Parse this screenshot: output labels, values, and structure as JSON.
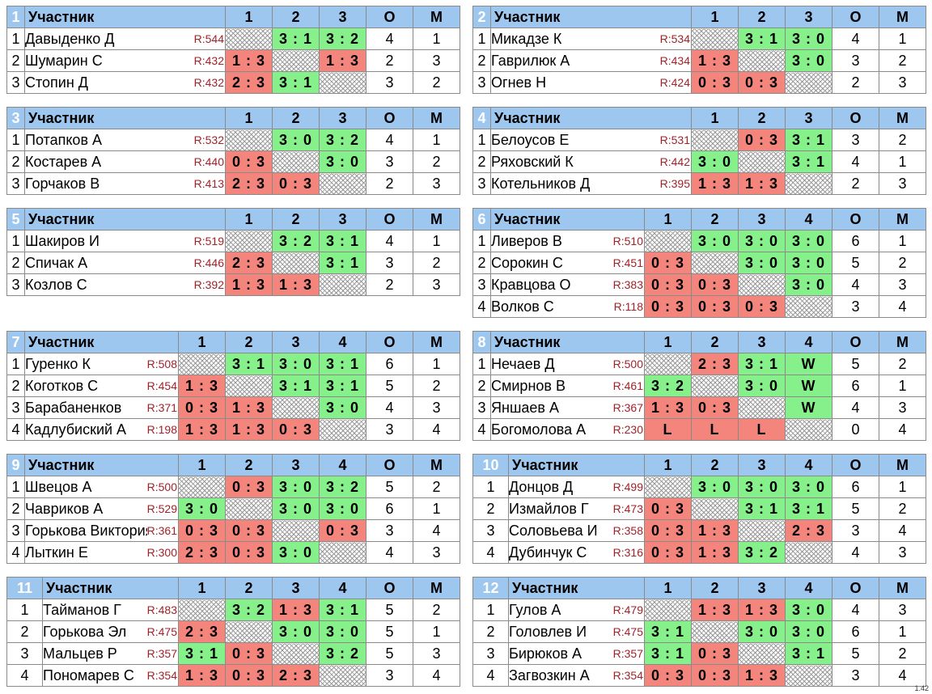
{
  "groups": [
    {
      "num": "1",
      "header": "Участник",
      "cols": [
        "1",
        "2",
        "3"
      ],
      "o_label": "О",
      "m_label": "М",
      "rows": [
        {
          "n": "1",
          "name": "Давыденко Д",
          "rating": "R:544",
          "scores": [
            "",
            "3 : 1",
            "3 : 2"
          ],
          "o": "4",
          "m": "1"
        },
        {
          "n": "2",
          "name": "Шумарин С",
          "rating": "R:432",
          "scores": [
            "1 : 3",
            "",
            "1 : 3"
          ],
          "o": "2",
          "m": "3"
        },
        {
          "n": "3",
          "name": "Стопин Д",
          "rating": "R:432",
          "scores": [
            "2 : 3",
            "3 : 1",
            ""
          ],
          "o": "3",
          "m": "2"
        }
      ]
    },
    {
      "num": "2",
      "header": "Участник",
      "cols": [
        "1",
        "2",
        "3"
      ],
      "o_label": "О",
      "m_label": "М",
      "rows": [
        {
          "n": "1",
          "name": "Микадзе К",
          "rating": "R:534",
          "scores": [
            "",
            "3 : 1",
            "3 : 0"
          ],
          "o": "4",
          "m": "1"
        },
        {
          "n": "2",
          "name": "Гаврилюк А",
          "rating": "R:434",
          "scores": [
            "1 : 3",
            "",
            "3 : 0"
          ],
          "o": "3",
          "m": "2"
        },
        {
          "n": "3",
          "name": "Огнев Н",
          "rating": "R:424",
          "scores": [
            "0 : 3",
            "0 : 3",
            ""
          ],
          "o": "2",
          "m": "3"
        }
      ]
    },
    {
      "num": "3",
      "header": "Участник",
      "cols": [
        "1",
        "2",
        "3"
      ],
      "o_label": "О",
      "m_label": "М",
      "rows": [
        {
          "n": "1",
          "name": "Потапков А",
          "rating": "R:532",
          "scores": [
            "",
            "3 : 0",
            "3 : 2"
          ],
          "o": "4",
          "m": "1"
        },
        {
          "n": "2",
          "name": "Костарев А",
          "rating": "R:440",
          "scores": [
            "0 : 3",
            "",
            "3 : 0"
          ],
          "o": "3",
          "m": "2"
        },
        {
          "n": "3",
          "name": "Горчаков В",
          "rating": "R:413",
          "scores": [
            "2 : 3",
            "0 : 3",
            ""
          ],
          "o": "2",
          "m": "3"
        }
      ]
    },
    {
      "num": "4",
      "header": "Участник",
      "cols": [
        "1",
        "2",
        "3"
      ],
      "o_label": "О",
      "m_label": "М",
      "rows": [
        {
          "n": "1",
          "name": "Белоусов Е",
          "rating": "R:531",
          "scores": [
            "",
            "0 : 3",
            "3 : 1"
          ],
          "o": "3",
          "m": "2"
        },
        {
          "n": "2",
          "name": "Ряховский К",
          "rating": "R:442",
          "scores": [
            "3 : 0",
            "",
            "3 : 1"
          ],
          "o": "4",
          "m": "1"
        },
        {
          "n": "3",
          "name": "Котельников Д",
          "rating": "R:395",
          "scores": [
            "1 : 3",
            "1 : 3",
            ""
          ],
          "o": "2",
          "m": "3"
        }
      ]
    },
    {
      "num": "5",
      "header": "Участник",
      "cols": [
        "1",
        "2",
        "3"
      ],
      "o_label": "О",
      "m_label": "М",
      "rows": [
        {
          "n": "1",
          "name": "Шакиров И",
          "rating": "R:519",
          "scores": [
            "",
            "3 : 2",
            "3 : 1"
          ],
          "o": "4",
          "m": "1"
        },
        {
          "n": "2",
          "name": "Спичак А",
          "rating": "R:446",
          "scores": [
            "2 : 3",
            "",
            "3 : 1"
          ],
          "o": "3",
          "m": "2"
        },
        {
          "n": "3",
          "name": "Козлов С",
          "rating": "R:392",
          "scores": [
            "1 : 3",
            "1 : 3",
            ""
          ],
          "o": "2",
          "m": "3"
        }
      ]
    },
    {
      "num": "6",
      "header": "Участник",
      "cols": [
        "1",
        "2",
        "3",
        "4"
      ],
      "o_label": "О",
      "m_label": "М",
      "rows": [
        {
          "n": "1",
          "name": "Ливеров В",
          "rating": "R:510",
          "scores": [
            "",
            "3 : 0",
            "3 : 0",
            "3 : 0"
          ],
          "o": "6",
          "m": "1"
        },
        {
          "n": "2",
          "name": "Сорокин С",
          "rating": "R:451",
          "scores": [
            "0 : 3",
            "",
            "3 : 0",
            "3 : 0"
          ],
          "o": "5",
          "m": "2"
        },
        {
          "n": "3",
          "name": "Кравцова О",
          "rating": "R:383",
          "scores": [
            "0 : 3",
            "0 : 3",
            "",
            "3 : 0"
          ],
          "o": "4",
          "m": "3"
        },
        {
          "n": "4",
          "name": "Волков С",
          "rating": "R:118",
          "scores": [
            "0 : 3",
            "0 : 3",
            "0 : 3",
            ""
          ],
          "o": "3",
          "m": "4"
        }
      ]
    },
    {
      "num": "7",
      "header": "Участник",
      "cols": [
        "1",
        "2",
        "3",
        "4"
      ],
      "o_label": "О",
      "m_label": "М",
      "rows": [
        {
          "n": "1",
          "name": "Гуренко К",
          "rating": "R:508",
          "scores": [
            "",
            "3 : 1",
            "3 : 0",
            "3 : 1"
          ],
          "o": "6",
          "m": "1"
        },
        {
          "n": "2",
          "name": "Коготков С",
          "rating": "R:454",
          "scores": [
            "1 : 3",
            "",
            "3 : 1",
            "3 : 1"
          ],
          "o": "5",
          "m": "2"
        },
        {
          "n": "3",
          "name": "Барабаненков",
          "rating": "R:371",
          "scores": [
            "0 : 3",
            "1 : 3",
            "",
            "3 : 0"
          ],
          "o": "4",
          "m": "3"
        },
        {
          "n": "4",
          "name": "Кадлубиский А",
          "rating": "R:198",
          "scores": [
            "1 : 3",
            "1 : 3",
            "0 : 3",
            ""
          ],
          "o": "3",
          "m": "4"
        }
      ]
    },
    {
      "num": "8",
      "header": "Участник",
      "cols": [
        "1",
        "2",
        "3",
        "4"
      ],
      "o_label": "О",
      "m_label": "М",
      "rows": [
        {
          "n": "1",
          "name": "Нечаев Д",
          "rating": "R:500",
          "scores": [
            "",
            "2 : 3",
            "3 : 1",
            "W"
          ],
          "o": "5",
          "m": "2"
        },
        {
          "n": "2",
          "name": "Смирнов В",
          "rating": "R:461",
          "scores": [
            "3 : 2",
            "",
            "3 : 0",
            "W"
          ],
          "o": "6",
          "m": "1"
        },
        {
          "n": "3",
          "name": "Яншаев А",
          "rating": "R:367",
          "scores": [
            "1 : 3",
            "0 : 3",
            "",
            "W"
          ],
          "o": "4",
          "m": "3"
        },
        {
          "n": "4",
          "name": "Богомолова А",
          "rating": "R:230",
          "scores": [
            "L",
            "L",
            "L",
            ""
          ],
          "o": "0",
          "m": "4"
        }
      ]
    },
    {
      "num": "9",
      "header": "Участник",
      "cols": [
        "1",
        "2",
        "3",
        "4"
      ],
      "o_label": "О",
      "m_label": "М",
      "rows": [
        {
          "n": "1",
          "name": "Швецов А",
          "rating": "R:500",
          "scores": [
            "",
            "0 : 3",
            "3 : 0",
            "3 : 2"
          ],
          "o": "5",
          "m": "2"
        },
        {
          "n": "2",
          "name": "Чавриков А",
          "rating": "R:529",
          "scores": [
            "3 : 0",
            "",
            "3 : 0",
            "3 : 0"
          ],
          "o": "6",
          "m": "1"
        },
        {
          "n": "3",
          "name": "Горькова Виктория",
          "rating": "R:361",
          "scores": [
            "0 : 3",
            "0 : 3",
            "",
            "0 : 3"
          ],
          "o": "3",
          "m": "4"
        },
        {
          "n": "4",
          "name": "Лыткин Е",
          "rating": "R:300",
          "scores": [
            "2 : 3",
            "0 : 3",
            "3 : 0",
            ""
          ],
          "o": "4",
          "m": "3"
        }
      ]
    },
    {
      "num": "10",
      "header": "Участник",
      "cols": [
        "1",
        "2",
        "3",
        "4"
      ],
      "o_label": "О",
      "m_label": "М",
      "rows": [
        {
          "n": "1",
          "name": "Донцов Д",
          "rating": "R:499",
          "scores": [
            "",
            "3 : 0",
            "3 : 0",
            "3 : 0"
          ],
          "o": "6",
          "m": "1"
        },
        {
          "n": "2",
          "name": "Измайлов Г",
          "rating": "R:473",
          "scores": [
            "0 : 3",
            "",
            "3 : 1",
            "3 : 1"
          ],
          "o": "5",
          "m": "2"
        },
        {
          "n": "3",
          "name": "Соловьева И",
          "rating": "R:358",
          "scores": [
            "0 : 3",
            "1 : 3",
            "",
            "2 : 3"
          ],
          "o": "3",
          "m": "4"
        },
        {
          "n": "4",
          "name": "Дубинчук С",
          "rating": "R:316",
          "scores": [
            "0 : 3",
            "1 : 3",
            "3 : 2",
            ""
          ],
          "o": "4",
          "m": "3"
        }
      ]
    },
    {
      "num": "11",
      "header": "Участник",
      "cols": [
        "1",
        "2",
        "3",
        "4"
      ],
      "o_label": "О",
      "m_label": "М",
      "rows": [
        {
          "n": "1",
          "name": "Тайманов Г",
          "rating": "R:483",
          "scores": [
            "",
            "3 : 2",
            "1 : 3",
            "3 : 1"
          ],
          "o": "5",
          "m": "2"
        },
        {
          "n": "2",
          "name": "Горькова Эл",
          "rating": "R:475",
          "scores": [
            "2 : 3",
            "",
            "3 : 0",
            "3 : 0"
          ],
          "o": "5",
          "m": "1"
        },
        {
          "n": "3",
          "name": "Мальцев Р",
          "rating": "R:357",
          "scores": [
            "3 : 1",
            "0 : 3",
            "",
            "3 : 2"
          ],
          "o": "5",
          "m": "3"
        },
        {
          "n": "4",
          "name": "Пономарев С",
          "rating": "R:354",
          "scores": [
            "1 : 3",
            "0 : 3",
            "2 : 3",
            ""
          ],
          "o": "3",
          "m": "4"
        }
      ]
    },
    {
      "num": "12",
      "header": "Участник",
      "cols": [
        "1",
        "2",
        "3",
        "4"
      ],
      "o_label": "О",
      "m_label": "М",
      "rows": [
        {
          "n": "1",
          "name": "Гулов А",
          "rating": "R:479",
          "scores": [
            "",
            "1 : 3",
            "1 : 3",
            "3 : 0"
          ],
          "o": "4",
          "m": "3"
        },
        {
          "n": "2",
          "name": "Головлев И",
          "rating": "R:475",
          "scores": [
            "3 : 1",
            "",
            "3 : 0",
            "3 : 0"
          ],
          "o": "6",
          "m": "1"
        },
        {
          "n": "3",
          "name": "Бирюков А",
          "rating": "R:357",
          "scores": [
            "3 : 1",
            "0 : 3",
            "",
            "3 : 1"
          ],
          "o": "5",
          "m": "2"
        },
        {
          "n": "4",
          "name": "Загвозкин А",
          "rating": "R:354",
          "scores": [
            "0 : 3",
            "0 : 3",
            "1 : 3",
            ""
          ],
          "o": "3",
          "m": "4"
        }
      ]
    }
  ],
  "version": "1.42",
  "colors": {
    "win": "#86f08a",
    "loss": "#f4857d",
    "header": "#9ec7f0",
    "group_badge": "#3a69b0",
    "rating": "#a0232a"
  }
}
